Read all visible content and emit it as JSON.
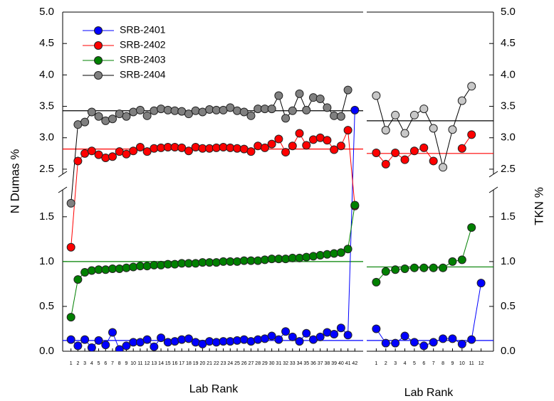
{
  "chart_data": [
    {
      "type": "line",
      "xlabel": "Lab Rank",
      "ylabel": "N Dumas %",
      "yaxis_side": "left",
      "xlim": [
        -0.2,
        43.2
      ],
      "ylim": [
        0,
        5.0
      ],
      "ybreak": [
        1.8,
        2.42
      ],
      "yticks": [
        {
          "value": 0,
          "label": "0.0"
        },
        0.5,
        {
          "value": 1,
          "label": "1.0"
        },
        1.5,
        2.5,
        {
          "value": 3,
          "label": "3.0"
        },
        3.5,
        {
          "value": 4,
          "label": "4.0"
        },
        4.5,
        {
          "value": 5,
          "label": "5.0"
        }
      ],
      "x": [
        1,
        2,
        3,
        4,
        5,
        6,
        7,
        8,
        9,
        10,
        11,
        12,
        13,
        14,
        15,
        16,
        17,
        18,
        19,
        20,
        21,
        22,
        23,
        24,
        25,
        26,
        27,
        28,
        29,
        30,
        31,
        32,
        33,
        34,
        35,
        36,
        37,
        38,
        39,
        40,
        41,
        42
      ],
      "series": [
        {
          "name": "SRB-2401",
          "color": "#0000ff",
          "line_color": "#0000ff",
          "mean": 0.12,
          "values": [
            0.13,
            0.06,
            0.13,
            0.04,
            0.12,
            0.07,
            0.21,
            0.02,
            0.06,
            0.1,
            0.1,
            0.13,
            0.05,
            0.15,
            0.1,
            0.11,
            0.13,
            0.14,
            0.1,
            0.08,
            0.11,
            0.1,
            0.11,
            0.11,
            0.12,
            0.13,
            0.11,
            0.13,
            0.14,
            0.17,
            0.13,
            0.22,
            0.16,
            0.11,
            0.2,
            0.13,
            0.16,
            0.21,
            0.19,
            0.26,
            0.18,
            3.44
          ]
        },
        {
          "name": "SRB-2402",
          "color": "#ff0000",
          "line_color": "#ff0000",
          "mean": 2.82,
          "values": [
            1.16,
            2.63,
            2.75,
            2.79,
            2.73,
            2.68,
            2.7,
            2.78,
            2.74,
            2.79,
            2.85,
            2.78,
            2.83,
            2.84,
            2.85,
            2.85,
            2.84,
            2.79,
            2.85,
            2.83,
            2.83,
            2.84,
            2.85,
            2.84,
            2.83,
            2.82,
            2.78,
            2.87,
            2.84,
            2.9,
            2.98,
            2.77,
            2.87,
            3.07,
            2.88,
            2.97,
            3.0,
            2.96,
            2.81,
            2.87,
            3.12,
            1.62
          ]
        },
        {
          "name": "SRB-2403",
          "color": "#008000",
          "line_color": "#008000",
          "mean": 1.0,
          "values": [
            0.38,
            0.8,
            0.88,
            0.9,
            0.91,
            0.91,
            0.92,
            0.92,
            0.93,
            0.94,
            0.95,
            0.95,
            0.96,
            0.96,
            0.97,
            0.97,
            0.98,
            0.98,
            0.98,
            0.99,
            0.99,
            0.99,
            1.0,
            1.0,
            1.0,
            1.01,
            1.01,
            1.01,
            1.02,
            1.03,
            1.03,
            1.03,
            1.04,
            1.04,
            1.05,
            1.06,
            1.07,
            1.08,
            1.09,
            1.1,
            1.14,
            1.63
          ]
        },
        {
          "name": "SRB-2404",
          "color": "#808080",
          "line_color": "#000000",
          "mean": 3.43,
          "values": [
            1.65,
            3.21,
            3.25,
            3.41,
            3.34,
            3.27,
            3.3,
            3.38,
            3.34,
            3.41,
            3.44,
            3.35,
            3.43,
            3.46,
            3.44,
            3.43,
            3.42,
            3.38,
            3.43,
            3.41,
            3.45,
            3.44,
            3.44,
            3.48,
            3.43,
            3.41,
            3.35,
            3.46,
            3.46,
            3.46,
            3.67,
            3.31,
            3.43,
            3.7,
            3.44,
            3.64,
            3.62,
            3.48,
            3.35,
            3.34,
            3.76,
            null
          ]
        }
      ]
    },
    {
      "type": "line",
      "xlabel": "Lab Rank",
      "ylabel": "TKN %",
      "yaxis_side": "right",
      "xlim": [
        0,
        13.3
      ],
      "ylim": [
        0,
        5.0
      ],
      "ybreak": [
        1.8,
        2.42
      ],
      "yticks": [
        {
          "value": 0,
          "label": "0.0"
        },
        0.5,
        {
          "value": 1,
          "label": "1.0"
        },
        1.5,
        2.5,
        {
          "value": 3,
          "label": "3.0"
        },
        3.5,
        {
          "value": 4,
          "label": "4.0"
        },
        4.5,
        {
          "value": 5,
          "label": "5.0"
        }
      ],
      "x": [
        1,
        2,
        3,
        4,
        5,
        6,
        7,
        8,
        9,
        10,
        11,
        12
      ],
      "series": [
        {
          "color": "#0000ff",
          "line_color": "#0000ff",
          "mean": 0.12,
          "values": [
            0.25,
            0.09,
            0.09,
            0.17,
            0.1,
            0.06,
            0.1,
            0.14,
            0.14,
            0.08,
            0.13,
            0.76
          ]
        },
        {
          "color": "#ff0000",
          "line_color": "#ff0000",
          "mean": 2.75,
          "values": [
            2.76,
            2.58,
            2.76,
            2.65,
            2.79,
            2.84,
            2.63,
            null,
            null,
            2.83,
            3.05,
            null
          ]
        },
        {
          "color": "#008000",
          "line_color": "#008000",
          "mean": 0.94,
          "values": [
            0.77,
            0.89,
            0.91,
            0.92,
            0.93,
            0.93,
            0.93,
            0.93,
            1.0,
            1.02,
            1.38,
            null
          ]
        },
        {
          "color": "#c8c8c8",
          "line_color": "#000000",
          "mean": 3.27,
          "values": [
            3.67,
            3.12,
            3.36,
            3.07,
            3.36,
            3.46,
            3.15,
            2.53,
            3.13,
            3.59,
            3.82,
            null
          ]
        }
      ]
    }
  ]
}
